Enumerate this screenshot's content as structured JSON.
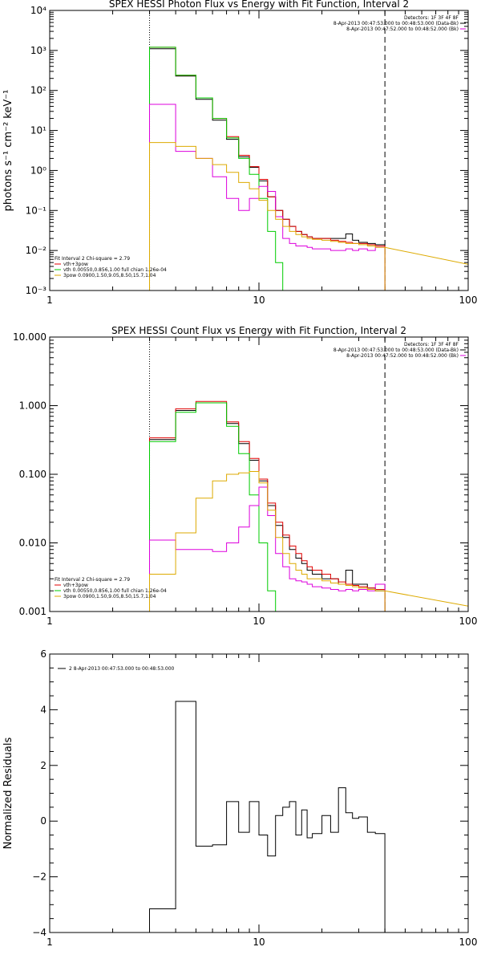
{
  "chart_data": [
    {
      "type": "line",
      "title": "SPEX HESSI Photon Flux vs Energy with Fit Function, Interval 2",
      "ylabel": "photons s⁻¹ cm⁻² keV⁻¹",
      "xscale": "log",
      "yscale": "log",
      "xlim": [
        1,
        100
      ],
      "ylim": [
        0.001,
        10000
      ],
      "xticks": [
        "1",
        "10",
        "100"
      ],
      "yticks": [
        "10⁻³",
        "10⁻²",
        "10⁻¹",
        "10⁰",
        "10¹",
        "10²",
        "10³",
        "10⁴"
      ],
      "vlines": [
        {
          "x": 3,
          "style": "dotted"
        },
        {
          "x": 40,
          "style": "dashed"
        }
      ],
      "legend_top_right": [
        "Detectors: 1F 3F 4F 8F",
        "8-Apr-2013 00:47:53.000 to 00:48:53.000 (Data-Bk)",
        "8-Apr-2013 00:47:52.000 to 00:48:52.000 (Bk)"
      ],
      "legend_bottom_left": [
        {
          "text": "Fit Interval  2   Chi-square = 2.79",
          "color": ""
        },
        {
          "text": "vth+3pow",
          "color": "#e00000"
        },
        {
          "text": "vth 0.00550,0.856,1.00  full chian 1.26e-04",
          "color": "#00cc00"
        },
        {
          "text": "3pow 0.0900,1.50,9.05,8.50,15.7,1.04",
          "color": "#ddaa00"
        }
      ],
      "series": [
        {
          "color": "#000000",
          "edges": [
            3,
            3.5,
            4,
            4.5,
            5,
            5.5,
            6,
            6.5,
            7,
            7.5,
            8,
            8.5,
            9,
            9.5,
            10,
            11,
            12,
            13,
            14,
            15,
            16,
            17,
            18,
            20,
            22,
            24,
            26,
            28,
            30,
            33,
            36,
            40
          ],
          "values": [
            1100,
            1100,
            230,
            230,
            60,
            60,
            18,
            18,
            6,
            6,
            2.2,
            2.2,
            1.2,
            1.2,
            0.55,
            0.22,
            0.1,
            0.06,
            0.04,
            0.03,
            0.025,
            0.022,
            0.02,
            0.02,
            0.02,
            0.02,
            0.026,
            0.018,
            0.016,
            0.015,
            0.014
          ]
        },
        {
          "color": "#e00000",
          "edges": [
            3,
            3.5,
            4,
            4.5,
            5,
            5.5,
            6,
            6.5,
            7,
            7.5,
            8,
            8.5,
            9,
            9.5,
            10,
            11,
            12,
            13,
            14,
            15,
            16,
            17,
            18,
            20,
            22,
            24,
            26,
            28,
            30,
            33,
            36,
            40
          ],
          "values": [
            1200,
            1200,
            240,
            240,
            65,
            65,
            20,
            20,
            7,
            7,
            2.4,
            2.4,
            1.25,
            1.25,
            0.6,
            0.22,
            0.1,
            0.06,
            0.04,
            0.03,
            0.025,
            0.022,
            0.02,
            0.02,
            0.018,
            0.017,
            0.016,
            0.015,
            0.015,
            0.014,
            0.013
          ]
        },
        {
          "color": "#00cc00",
          "edges": [
            3,
            3.5,
            4,
            4.5,
            5,
            5.5,
            6,
            6.5,
            7,
            7.5,
            8,
            8.5,
            9,
            9.5,
            10,
            11,
            12,
            13
          ],
          "values": [
            1200,
            1200,
            240,
            240,
            65,
            65,
            20,
            20,
            6.5,
            6.5,
            2,
            2,
            0.8,
            0.8,
            0.2,
            0.03,
            0.005
          ]
        },
        {
          "color": "#dd00dd",
          "edges": [
            3,
            3.5,
            4,
            4.5,
            5,
            5.5,
            6,
            6.5,
            7,
            7.5,
            8,
            8.5,
            9,
            9.5,
            10,
            11,
            12,
            13,
            14,
            15,
            16,
            17,
            18,
            20,
            22,
            24,
            26,
            28,
            30,
            33,
            36,
            40
          ],
          "values": [
            45,
            45,
            3,
            3,
            2,
            2,
            0.7,
            0.7,
            0.2,
            0.2,
            0.1,
            0.1,
            0.2,
            0.2,
            0.4,
            0.3,
            0.07,
            0.02,
            0.015,
            0.013,
            0.013,
            0.012,
            0.011,
            0.011,
            0.01,
            0.01,
            0.011,
            0.01,
            0.011,
            0.01,
            0.012
          ]
        },
        {
          "color": "#ddaa00",
          "edges": [
            3,
            3.5,
            4,
            4.5,
            5,
            5.5,
            6,
            6.5,
            7,
            7.5,
            8,
            8.5,
            9,
            9.5,
            10,
            11,
            12,
            13,
            14,
            15,
            16,
            17,
            18,
            20,
            22,
            24,
            26,
            28,
            30,
            33,
            36,
            40
          ],
          "values": [
            5,
            5,
            4,
            4,
            2,
            2,
            1.4,
            1.4,
            0.9,
            0.9,
            0.5,
            0.5,
            0.35,
            0.35,
            0.18,
            0.1,
            0.06,
            0.04,
            0.03,
            0.025,
            0.022,
            0.02,
            0.019,
            0.018,
            0.017,
            0.016,
            0.015,
            0.015,
            0.014,
            0.013,
            0.012
          ]
        },
        {
          "color": "#ddaa00",
          "line": [
            [
              40,
              0.012
            ],
            [
              100,
              0.0045
            ]
          ]
        }
      ]
    },
    {
      "type": "line",
      "title": "SPEX HESSI Count Flux vs Energy with Fit Function, Interval 2",
      "ylabel": "",
      "xscale": "log",
      "yscale": "log",
      "xlim": [
        1,
        100
      ],
      "ylim": [
        0.001,
        10
      ],
      "xticks": [
        "1",
        "10",
        "100"
      ],
      "yticks": [
        "0.001",
        "0.010",
        "0.100",
        "1.000",
        "10.000"
      ],
      "vlines": [
        {
          "x": 3,
          "style": "dotted"
        },
        {
          "x": 40,
          "style": "dashed"
        }
      ],
      "legend_top_right": [
        "Detectors: 1F 3F 4F 8F",
        "8-Apr-2013 00:47:53.000 to 00:48:53.000 (Data-Bk)",
        "8-Apr-2013 00:47:52.000 to 00:48:52.000 (Bk)"
      ],
      "legend_bottom_left": [
        {
          "text": "Fit Interval  2   Chi-square = 2.79",
          "color": ""
        },
        {
          "text": "vth+3pow",
          "color": "#e00000"
        },
        {
          "text": "vth 0.00550,0.856,1.00  full chian 1.26e-04",
          "color": "#00cc00"
        },
        {
          "text": "3pow 0.0900,1.50,9.05,8.50,15.7,1.04",
          "color": "#ddaa00"
        }
      ],
      "series": [
        {
          "color": "#000000",
          "edges": [
            3,
            3.5,
            4,
            4.5,
            5,
            5.5,
            6,
            6.5,
            7,
            7.5,
            8,
            8.5,
            9,
            9.5,
            10,
            11,
            12,
            13,
            14,
            15,
            16,
            17,
            18,
            20,
            22,
            24,
            26,
            28,
            30,
            33,
            36,
            40
          ],
          "values": [
            0.32,
            0.32,
            0.85,
            0.85,
            1.1,
            1.1,
            1.1,
            1.1,
            0.55,
            0.55,
            0.28,
            0.28,
            0.16,
            0.16,
            0.08,
            0.035,
            0.018,
            0.012,
            0.008,
            0.006,
            0.005,
            0.004,
            0.0035,
            0.003,
            0.003,
            0.0025,
            0.004,
            0.0025,
            0.0025,
            0.0022,
            0.002
          ]
        },
        {
          "color": "#e00000",
          "edges": [
            3,
            3.5,
            4,
            4.5,
            5,
            5.5,
            6,
            6.5,
            7,
            7.5,
            8,
            8.5,
            9,
            9.5,
            10,
            11,
            12,
            13,
            14,
            15,
            16,
            17,
            18,
            20,
            22,
            24,
            26,
            28,
            30,
            33,
            36,
            40
          ],
          "values": [
            0.34,
            0.34,
            0.9,
            0.9,
            1.15,
            1.15,
            1.15,
            1.15,
            0.58,
            0.58,
            0.3,
            0.3,
            0.17,
            0.17,
            0.085,
            0.038,
            0.02,
            0.013,
            0.009,
            0.007,
            0.0055,
            0.0045,
            0.004,
            0.0035,
            0.003,
            0.0027,
            0.0025,
            0.0024,
            0.0023,
            0.0022,
            0.0021
          ]
        },
        {
          "color": "#00cc00",
          "edges": [
            3,
            3.5,
            4,
            4.5,
            5,
            5.5,
            6,
            6.5,
            7,
            7.5,
            8,
            8.5,
            9,
            9.5,
            10,
            11,
            12
          ],
          "values": [
            0.3,
            0.3,
            0.8,
            0.8,
            1.1,
            1.1,
            1.1,
            1.1,
            0.5,
            0.5,
            0.2,
            0.2,
            0.05,
            0.05,
            0.01,
            0.002
          ]
        },
        {
          "color": "#dd00dd",
          "edges": [
            3,
            3.5,
            4,
            4.5,
            5,
            5.5,
            6,
            6.5,
            7,
            7.5,
            8,
            8.5,
            9,
            9.5,
            10,
            11,
            12,
            13,
            14,
            15,
            16,
            17,
            18,
            20,
            22,
            24,
            26,
            28,
            30,
            33,
            36,
            40
          ],
          "values": [
            0.011,
            0.011,
            0.008,
            0.008,
            0.008,
            0.008,
            0.0075,
            0.0075,
            0.01,
            0.01,
            0.017,
            0.017,
            0.035,
            0.035,
            0.065,
            0.025,
            0.007,
            0.0045,
            0.003,
            0.0028,
            0.0027,
            0.0025,
            0.0023,
            0.0022,
            0.0021,
            0.002,
            0.0021,
            0.002,
            0.0021,
            0.002,
            0.0025
          ]
        },
        {
          "color": "#ddaa00",
          "edges": [
            3,
            3.5,
            4,
            4.5,
            5,
            5.5,
            6,
            6.5,
            7,
            7.5,
            8,
            8.5,
            9,
            9.5,
            10,
            11,
            12,
            13,
            14,
            15,
            16,
            17,
            18,
            20,
            22,
            24,
            26,
            28,
            30,
            33,
            36,
            40
          ],
          "values": [
            0.0035,
            0.0035,
            0.014,
            0.014,
            0.045,
            0.045,
            0.08,
            0.08,
            0.1,
            0.1,
            0.105,
            0.105,
            0.11,
            0.11,
            0.075,
            0.03,
            0.012,
            0.007,
            0.005,
            0.004,
            0.0035,
            0.003,
            0.003,
            0.0028,
            0.0026,
            0.0025,
            0.0024,
            0.0023,
            0.0022,
            0.0021,
            0.002
          ]
        },
        {
          "color": "#ddaa00",
          "line": [
            [
              40,
              0.002
            ],
            [
              100,
              0.0012
            ]
          ]
        }
      ]
    },
    {
      "type": "line",
      "title": "",
      "ylabel": "Normalized Residuals",
      "xscale": "log",
      "yscale": "linear",
      "xlim": [
        1,
        100
      ],
      "ylim": [
        -4,
        6
      ],
      "xticks": [
        "1",
        "10",
        "100"
      ],
      "yticks": [
        "−4",
        "−2",
        "0",
        "2",
        "4",
        "6"
      ],
      "legend_top_left": "2  8-Apr-2013 00:47:53.000 to 00:48:53.000",
      "series": [
        {
          "color": "#000000",
          "edges": [
            3,
            3.5,
            4,
            4.5,
            5,
            5.5,
            6,
            6.5,
            7,
            7.5,
            8,
            8.5,
            9,
            9.5,
            10,
            11,
            12,
            13,
            14,
            15,
            16,
            17,
            18,
            20,
            22,
            24,
            26,
            28,
            30,
            33,
            36,
            40
          ],
          "values": [
            -3.15,
            -3.15,
            4.3,
            4.3,
            -0.9,
            -0.9,
            -0.85,
            -0.85,
            0.7,
            0.7,
            -0.4,
            -0.4,
            0.7,
            0.7,
            -0.5,
            -1.25,
            0.2,
            0.5,
            0.7,
            -0.5,
            0.4,
            -0.6,
            -0.45,
            0.2,
            -0.4,
            1.2,
            0.3,
            0.1,
            0.15,
            -0.4,
            -0.45
          ]
        }
      ]
    }
  ]
}
